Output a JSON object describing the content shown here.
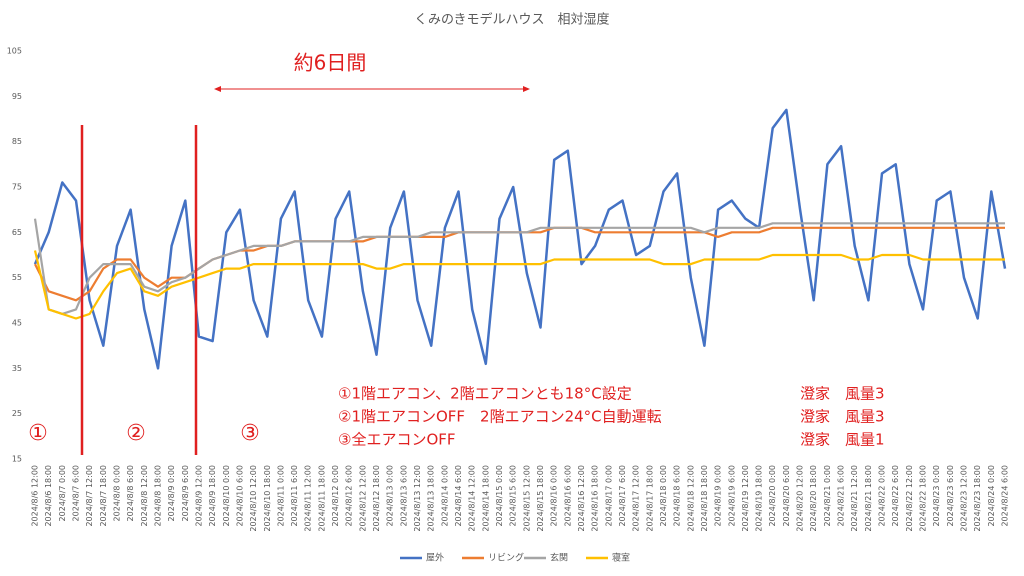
{
  "chart_data": {
    "type": "line",
    "title": "くみのきモデルハウス　相対湿度",
    "categories": [
      "2024/8/6 12:00",
      "2024/8/6 18:00",
      "2024/8/7 0:00",
      "2024/8/7 6:00",
      "2024/8/7 12:00",
      "2024/8/7 18:00",
      "2024/8/8 0:00",
      "2024/8/8 6:00",
      "2024/8/8 12:00",
      "2024/8/8 18:00",
      "2024/8/9 0:00",
      "2024/8/9 6:00",
      "2024/8/9 12:00",
      "2024/8/9 18:00",
      "2024/8/10 0:00",
      "2024/8/10 6:00",
      "2024/8/10 12:00",
      "2024/8/10 18:00",
      "2024/8/11 0:00",
      "2024/8/11 6:00",
      "2024/8/11 12:00",
      "2024/8/11 18:00",
      "2024/8/12 0:00",
      "2024/8/12 6:00",
      "2024/8/12 12:00",
      "2024/8/12 18:00",
      "2024/8/13 0:00",
      "2024/8/13 6:00",
      "2024/8/13 12:00",
      "2024/8/13 18:00",
      "2024/8/14 0:00",
      "2024/8/14 6:00",
      "2024/8/14 12:00",
      "2024/8/14 18:00",
      "2024/8/15 0:00",
      "2024/8/15 6:00",
      "2024/8/15 12:00",
      "2024/8/15 18:00",
      "2024/8/16 0:00",
      "2024/8/16 6:00",
      "2024/8/16 12:00",
      "2024/8/16 18:00",
      "2024/8/17 0:00",
      "2024/8/17 6:00",
      "2024/8/17 12:00",
      "2024/8/17 18:00",
      "2024/8/18 0:00",
      "2024/8/18 6:00",
      "2024/8/18 12:00",
      "2024/8/18 18:00",
      "2024/8/19 0:00",
      "2024/8/19 6:00",
      "2024/8/19 12:00",
      "2024/8/19 18:00",
      "2024/8/20 0:00",
      "2024/8/20 6:00",
      "2024/8/20 12:00",
      "2024/8/20 18:00",
      "2024/8/21 0:00",
      "2024/8/21 6:00",
      "2024/8/21 12:00",
      "2024/8/21 18:00",
      "2024/8/22 0:00",
      "2024/8/22 6:00",
      "2024/8/22 12:00",
      "2024/8/22 18:00",
      "2024/8/23 0:00",
      "2024/8/23 6:00",
      "2024/8/23 12:00",
      "2024/8/23 18:00",
      "2024/8/24 0:00",
      "2024/8/24 6:00"
    ],
    "series": [
      {
        "name": "屋外",
        "color": "#4472c4",
        "values": [
          58,
          65,
          76,
          72,
          50,
          40,
          62,
          70,
          48,
          35,
          62,
          72,
          42,
          41,
          65,
          70,
          50,
          42,
          68,
          74,
          50,
          42,
          68,
          74,
          52,
          38,
          66,
          74,
          50,
          40,
          66,
          74,
          48,
          36,
          68,
          75,
          56,
          44,
          81,
          83,
          58,
          62,
          70,
          72,
          60,
          62,
          74,
          78,
          55,
          40,
          70,
          72,
          68,
          66,
          88,
          92,
          70,
          50,
          80,
          84,
          62,
          50,
          78,
          80,
          58,
          48,
          72,
          74,
          55,
          46,
          74,
          57
        ]
      },
      {
        "name": "リビング",
        "color": "#ed7d31",
        "values": [
          58,
          52,
          51,
          50,
          52,
          57,
          59,
          59,
          55,
          53,
          55,
          55,
          57,
          59,
          60,
          61,
          61,
          62,
          62,
          63,
          63,
          63,
          63,
          63,
          63,
          64,
          64,
          64,
          64,
          64,
          64,
          65,
          65,
          65,
          65,
          65,
          65,
          65,
          66,
          66,
          66,
          65,
          65,
          65,
          65,
          65,
          65,
          65,
          65,
          65,
          64,
          65,
          65,
          65,
          66,
          66,
          66,
          66,
          66,
          66,
          66,
          66,
          66,
          66,
          66,
          66,
          66,
          66,
          66,
          66,
          66,
          66
        ]
      },
      {
        "name": "玄関",
        "color": "#a5a5a5",
        "values": [
          68,
          48,
          47,
          48,
          55,
          58,
          58,
          58,
          53,
          52,
          54,
          55,
          57,
          59,
          60,
          61,
          62,
          62,
          62,
          63,
          63,
          63,
          63,
          63,
          64,
          64,
          64,
          64,
          64,
          65,
          65,
          65,
          65,
          65,
          65,
          65,
          65,
          66,
          66,
          66,
          66,
          66,
          66,
          66,
          66,
          66,
          66,
          66,
          66,
          65,
          66,
          66,
          66,
          66,
          67,
          67,
          67,
          67,
          67,
          67,
          67,
          67,
          67,
          67,
          67,
          67,
          67,
          67,
          67,
          67,
          67,
          67
        ]
      },
      {
        "name": "寝室",
        "color": "#ffc000",
        "values": [
          61,
          48,
          47,
          46,
          47,
          52,
          56,
          57,
          52,
          51,
          53,
          54,
          55,
          56,
          57,
          57,
          58,
          58,
          58,
          58,
          58,
          58,
          58,
          58,
          58,
          57,
          57,
          58,
          58,
          58,
          58,
          58,
          58,
          58,
          58,
          58,
          58,
          58,
          59,
          59,
          59,
          59,
          59,
          59,
          59,
          59,
          58,
          58,
          58,
          59,
          59,
          59,
          59,
          59,
          60,
          60,
          60,
          60,
          60,
          60,
          59,
          59,
          60,
          60,
          60,
          59,
          59,
          59,
          59,
          59,
          59,
          59
        ]
      }
    ],
    "ylim": [
      15,
      105
    ],
    "yticks": [
      15,
      25,
      35,
      45,
      55,
      65,
      75,
      85,
      95,
      105
    ],
    "grid": false,
    "annotations": {
      "period": "約6日間",
      "notes": [
        [
          "①1階エアコン、2階エアコンとも18°C設定",
          "澄家　風量3"
        ],
        [
          "②1階エアコンOFF　2階エアコン24°C自動運転",
          "澄家　風量3"
        ],
        [
          "③全エアコンOFF",
          "澄家　風量1"
        ]
      ],
      "phases": [
        "①",
        "②",
        "③"
      ]
    }
  }
}
